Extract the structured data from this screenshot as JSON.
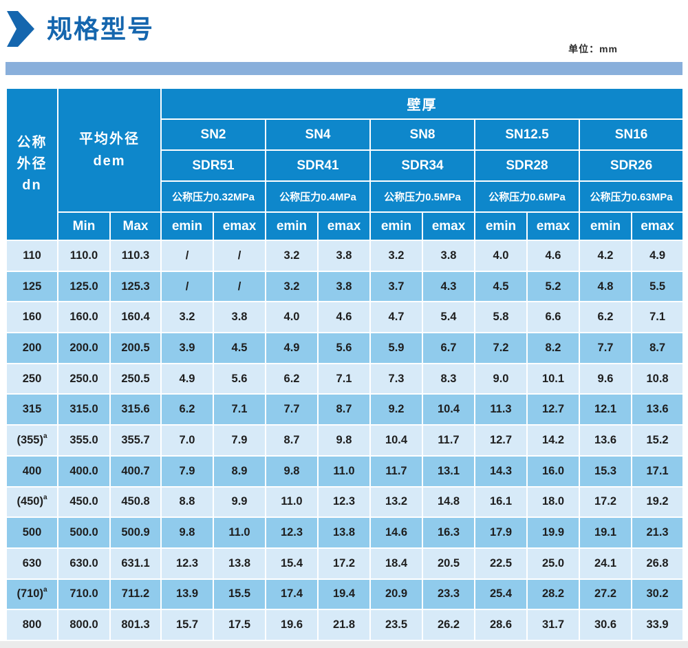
{
  "header": {
    "title": "规格型号",
    "unit_label": "单位：mm"
  },
  "colors": {
    "title_blue": "#1566ae",
    "table_header_blue": "#0e87cb",
    "row_light": "#d7eaf8",
    "row_dark": "#90cbec",
    "banner_bar": "#89afdb"
  },
  "table": {
    "header": {
      "dn_lines": [
        "公称",
        "外径",
        "dn"
      ],
      "dem_lines": [
        "平均外径",
        "dem"
      ],
      "wall_thickness": "壁厚",
      "min_label": "Min",
      "max_label": "Max",
      "emin_label": "emin",
      "emax_label": "emax",
      "groups": [
        {
          "sn": "SN2",
          "sdr": "SDR51",
          "pressure": "公称压力0.32MPa"
        },
        {
          "sn": "SN4",
          "sdr": "SDR41",
          "pressure": "公称压力0.4MPa"
        },
        {
          "sn": "SN8",
          "sdr": "SDR34",
          "pressure": "公称压力0.5MPa"
        },
        {
          "sn": "SN12.5",
          "sdr": "SDR28",
          "pressure": "公称压力0.6MPa"
        },
        {
          "sn": "SN16",
          "sdr": "SDR26",
          "pressure": "公称压力0.63MPa"
        }
      ]
    },
    "rows": [
      {
        "dn": "110",
        "sup": "",
        "min": "110.0",
        "max": "110.3",
        "values": [
          "/",
          "/",
          "3.2",
          "3.8",
          "3.2",
          "3.8",
          "4.0",
          "4.6",
          "4.2",
          "4.9"
        ]
      },
      {
        "dn": "125",
        "sup": "",
        "min": "125.0",
        "max": "125.3",
        "values": [
          "/",
          "/",
          "3.2",
          "3.8",
          "3.7",
          "4.3",
          "4.5",
          "5.2",
          "4.8",
          "5.5"
        ]
      },
      {
        "dn": "160",
        "sup": "",
        "min": "160.0",
        "max": "160.4",
        "values": [
          "3.2",
          "3.8",
          "4.0",
          "4.6",
          "4.7",
          "5.4",
          "5.8",
          "6.6",
          "6.2",
          "7.1"
        ]
      },
      {
        "dn": "200",
        "sup": "",
        "min": "200.0",
        "max": "200.5",
        "values": [
          "3.9",
          "4.5",
          "4.9",
          "5.6",
          "5.9",
          "6.7",
          "7.2",
          "8.2",
          "7.7",
          "8.7"
        ]
      },
      {
        "dn": "250",
        "sup": "",
        "min": "250.0",
        "max": "250.5",
        "values": [
          "4.9",
          "5.6",
          "6.2",
          "7.1",
          "7.3",
          "8.3",
          "9.0",
          "10.1",
          "9.6",
          "10.8"
        ]
      },
      {
        "dn": "315",
        "sup": "",
        "min": "315.0",
        "max": "315.6",
        "values": [
          "6.2",
          "7.1",
          "7.7",
          "8.7",
          "9.2",
          "10.4",
          "11.3",
          "12.7",
          "12.1",
          "13.6"
        ]
      },
      {
        "dn": "(355)",
        "sup": "a",
        "min": "355.0",
        "max": "355.7",
        "values": [
          "7.0",
          "7.9",
          "8.7",
          "9.8",
          "10.4",
          "11.7",
          "12.7",
          "14.2",
          "13.6",
          "15.2"
        ]
      },
      {
        "dn": "400",
        "sup": "",
        "min": "400.0",
        "max": "400.7",
        "values": [
          "7.9",
          "8.9",
          "9.8",
          "11.0",
          "11.7",
          "13.1",
          "14.3",
          "16.0",
          "15.3",
          "17.1"
        ]
      },
      {
        "dn": "(450)",
        "sup": "a",
        "min": "450.0",
        "max": "450.8",
        "values": [
          "8.8",
          "9.9",
          "11.0",
          "12.3",
          "13.2",
          "14.8",
          "16.1",
          "18.0",
          "17.2",
          "19.2"
        ]
      },
      {
        "dn": "500",
        "sup": "",
        "min": "500.0",
        "max": "500.9",
        "values": [
          "9.8",
          "11.0",
          "12.3",
          "13.8",
          "14.6",
          "16.3",
          "17.9",
          "19.9",
          "19.1",
          "21.3"
        ]
      },
      {
        "dn": "630",
        "sup": "",
        "min": "630.0",
        "max": "631.1",
        "values": [
          "12.3",
          "13.8",
          "15.4",
          "17.2",
          "18.4",
          "20.5",
          "22.5",
          "25.0",
          "24.1",
          "26.8"
        ]
      },
      {
        "dn": "(710)",
        "sup": "a",
        "min": "710.0",
        "max": "711.2",
        "values": [
          "13.9",
          "15.5",
          "17.4",
          "19.4",
          "20.9",
          "23.3",
          "25.4",
          "28.2",
          "27.2",
          "30.2"
        ]
      },
      {
        "dn": "800",
        "sup": "",
        "min": "800.0",
        "max": "801.3",
        "values": [
          "15.7",
          "17.5",
          "19.6",
          "21.8",
          "23.5",
          "26.2",
          "28.6",
          "31.7",
          "30.6",
          "33.9"
        ]
      }
    ]
  }
}
